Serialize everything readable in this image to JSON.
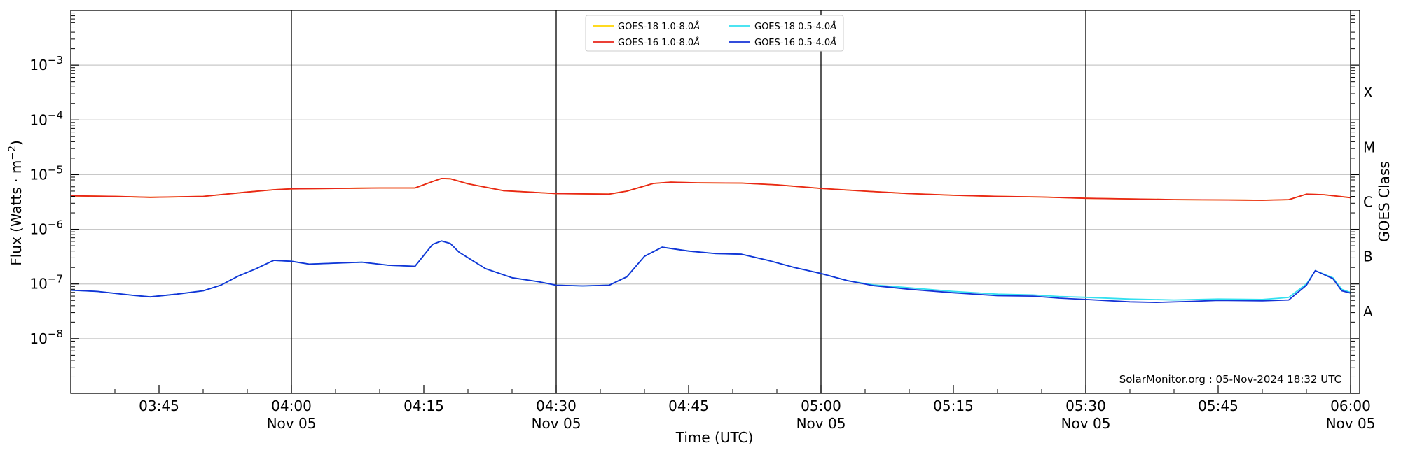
{
  "chart_data": {
    "type": "line",
    "xlabel": "Time (UTC)",
    "ylabel_main": "Flux (Watts · m",
    "ylabel_sup": "−2",
    "ylabel_end": ")",
    "right_label": "GOES Class",
    "yscale": "log",
    "xlim": [
      "03:35",
      "06:00"
    ],
    "ylim_log10": [
      -9,
      -2
    ],
    "grid": "horizontal",
    "legend_placement": "top-center",
    "watermark": "SolarMonitor.org : 05-Nov-2024 18:32 UTC",
    "x_ticks": [
      {
        "t": "03:45",
        "line1": "03:45",
        "line2": ""
      },
      {
        "t": "04:00",
        "line1": "04:00",
        "line2": "Nov 05"
      },
      {
        "t": "04:15",
        "line1": "04:15",
        "line2": ""
      },
      {
        "t": "04:30",
        "line1": "04:30",
        "line2": "Nov 05"
      },
      {
        "t": "04:45",
        "line1": "04:45",
        "line2": ""
      },
      {
        "t": "05:00",
        "line1": "05:00",
        "line2": "Nov 05"
      },
      {
        "t": "05:15",
        "line1": "05:15",
        "line2": ""
      },
      {
        "t": "05:30",
        "line1": "05:30",
        "line2": "Nov 05"
      },
      {
        "t": "05:45",
        "line1": "05:45",
        "line2": ""
      },
      {
        "t": "06:00",
        "line1": "06:00",
        "line2": "Nov 05"
      }
    ],
    "vlines": [
      "04:00",
      "04:30",
      "05:00",
      "05:30"
    ],
    "y_ticks": [
      {
        "exp": -8,
        "label": "10",
        "sup": "−8"
      },
      {
        "exp": -7,
        "label": "10",
        "sup": "−7"
      },
      {
        "exp": -6,
        "label": "10",
        "sup": "−6"
      },
      {
        "exp": -5,
        "label": "10",
        "sup": "−5"
      },
      {
        "exp": -4,
        "label": "10",
        "sup": "−4"
      },
      {
        "exp": -3,
        "label": "10",
        "sup": "−3"
      }
    ],
    "goes_classes": [
      {
        "label": "A",
        "exp": -7.5
      },
      {
        "label": "B",
        "exp": -6.5
      },
      {
        "label": "C",
        "exp": -5.5
      },
      {
        "label": "M",
        "exp": -4.5
      },
      {
        "label": "X",
        "exp": -3.5
      }
    ],
    "series": [
      {
        "name": "GOES-18 1.0-8.0Å",
        "name_main": "GOES-18 1.0-8.0",
        "color": "#ffd500",
        "points": [
          [
            "03:35",
            4.1e-06
          ],
          [
            "03:40",
            4e-06
          ],
          [
            "03:44",
            3.85e-06
          ],
          [
            "03:50",
            4e-06
          ],
          [
            "03:55",
            4.8e-06
          ],
          [
            "03:58",
            5.3e-06
          ],
          [
            "04:00",
            5.5e-06
          ],
          [
            "04:05",
            5.6e-06
          ],
          [
            "04:10",
            5.7e-06
          ],
          [
            "04:14",
            5.7e-06
          ],
          [
            "04:16",
            7.5e-06
          ],
          [
            "04:17",
            8.5e-06
          ],
          [
            "04:18",
            8.4e-06
          ],
          [
            "04:20",
            6.8e-06
          ],
          [
            "04:24",
            5.1e-06
          ],
          [
            "04:30",
            4.5e-06
          ],
          [
            "04:36",
            4.4e-06
          ],
          [
            "04:38",
            5e-06
          ],
          [
            "04:41",
            6.9e-06
          ],
          [
            "04:43",
            7.3e-06
          ],
          [
            "04:46",
            7.1e-06
          ],
          [
            "04:51",
            7e-06
          ],
          [
            "04:55",
            6.5e-06
          ],
          [
            "05:00",
            5.6e-06
          ],
          [
            "05:05",
            5e-06
          ],
          [
            "05:10",
            4.5e-06
          ],
          [
            "05:15",
            4.2e-06
          ],
          [
            "05:20",
            4e-06
          ],
          [
            "05:25",
            3.9e-06
          ],
          [
            "05:30",
            3.7e-06
          ],
          [
            "05:35",
            3.6e-06
          ],
          [
            "05:40",
            3.5e-06
          ],
          [
            "05:45",
            3.45e-06
          ],
          [
            "05:50",
            3.4e-06
          ],
          [
            "05:53",
            3.5e-06
          ],
          [
            "05:55",
            4.4e-06
          ],
          [
            "05:57",
            4.3e-06
          ],
          [
            "06:00",
            3.8e-06
          ]
        ]
      },
      {
        "name": "GOES-16 1.0-8.0Å",
        "name_main": "GOES-16 1.0-8.0",
        "color": "#e8251a",
        "points": [
          [
            "03:35",
            4.1e-06
          ],
          [
            "03:40",
            4e-06
          ],
          [
            "03:44",
            3.85e-06
          ],
          [
            "03:50",
            4e-06
          ],
          [
            "03:55",
            4.8e-06
          ],
          [
            "03:58",
            5.3e-06
          ],
          [
            "04:00",
            5.5e-06
          ],
          [
            "04:05",
            5.6e-06
          ],
          [
            "04:10",
            5.7e-06
          ],
          [
            "04:14",
            5.7e-06
          ],
          [
            "04:16",
            7.5e-06
          ],
          [
            "04:17",
            8.5e-06
          ],
          [
            "04:18",
            8.4e-06
          ],
          [
            "04:20",
            6.8e-06
          ],
          [
            "04:24",
            5.1e-06
          ],
          [
            "04:30",
            4.5e-06
          ],
          [
            "04:36",
            4.4e-06
          ],
          [
            "04:38",
            5e-06
          ],
          [
            "04:41",
            6.9e-06
          ],
          [
            "04:43",
            7.3e-06
          ],
          [
            "04:46",
            7.1e-06
          ],
          [
            "04:51",
            7e-06
          ],
          [
            "04:55",
            6.5e-06
          ],
          [
            "05:00",
            5.6e-06
          ],
          [
            "05:05",
            5e-06
          ],
          [
            "05:10",
            4.5e-06
          ],
          [
            "05:15",
            4.2e-06
          ],
          [
            "05:20",
            4e-06
          ],
          [
            "05:25",
            3.9e-06
          ],
          [
            "05:30",
            3.7e-06
          ],
          [
            "05:35",
            3.6e-06
          ],
          [
            "05:40",
            3.5e-06
          ],
          [
            "05:45",
            3.45e-06
          ],
          [
            "05:50",
            3.4e-06
          ],
          [
            "05:53",
            3.5e-06
          ],
          [
            "05:55",
            4.4e-06
          ],
          [
            "05:57",
            4.3e-06
          ],
          [
            "06:00",
            3.8e-06
          ]
        ]
      },
      {
        "name": "GOES-18 0.5-4.0Å",
        "name_main": "GOES-18 0.5-4.0",
        "color": "#33e0f0",
        "points": [
          [
            "03:35",
            7.7e-08
          ],
          [
            "03:38",
            7.3e-08
          ],
          [
            "03:42",
            6.2e-08
          ],
          [
            "03:44",
            5.8e-08
          ],
          [
            "03:47",
            6.5e-08
          ],
          [
            "03:50",
            7.5e-08
          ],
          [
            "03:52",
            9.5e-08
          ],
          [
            "03:54",
            1.4e-07
          ],
          [
            "03:56",
            1.9e-07
          ],
          [
            "03:58",
            2.7e-07
          ],
          [
            "04:00",
            2.6e-07
          ],
          [
            "04:02",
            2.3e-07
          ],
          [
            "04:05",
            2.4e-07
          ],
          [
            "04:08",
            2.5e-07
          ],
          [
            "04:11",
            2.2e-07
          ],
          [
            "04:14",
            2.1e-07
          ],
          [
            "04:16",
            5.3e-07
          ],
          [
            "04:17",
            6.1e-07
          ],
          [
            "04:18",
            5.5e-07
          ],
          [
            "04:19",
            3.8e-07
          ],
          [
            "04:22",
            1.9e-07
          ],
          [
            "04:25",
            1.3e-07
          ],
          [
            "04:28",
            1.1e-07
          ],
          [
            "04:30",
            9.5e-08
          ],
          [
            "04:33",
            9.2e-08
          ],
          [
            "04:36",
            9.5e-08
          ],
          [
            "04:38",
            1.35e-07
          ],
          [
            "04:40",
            3.2e-07
          ],
          [
            "04:42",
            4.7e-07
          ],
          [
            "04:45",
            4e-07
          ],
          [
            "04:48",
            3.6e-07
          ],
          [
            "04:51",
            3.5e-07
          ],
          [
            "04:54",
            2.7e-07
          ],
          [
            "04:57",
            2e-07
          ],
          [
            "05:00",
            1.55e-07
          ],
          [
            "05:03",
            1.15e-07
          ],
          [
            "05:06",
            9.6e-08
          ],
          [
            "05:10",
            8.5e-08
          ],
          [
            "05:15",
            7.3e-08
          ],
          [
            "05:20",
            6.5e-08
          ],
          [
            "05:24",
            6.3e-08
          ],
          [
            "05:27",
            5.9e-08
          ],
          [
            "05:30",
            5.7e-08
          ],
          [
            "05:35",
            5.3e-08
          ],
          [
            "05:40",
            5.1e-08
          ],
          [
            "05:45",
            5.3e-08
          ],
          [
            "05:50",
            5.2e-08
          ],
          [
            "05:52",
            5.5e-08
          ],
          [
            "05:53",
            5.7e-08
          ],
          [
            "05:55",
            1e-07
          ],
          [
            "05:56",
            1.75e-07
          ],
          [
            "05:58",
            1.3e-07
          ],
          [
            "05:59",
            8e-08
          ],
          [
            "06:00",
            7e-08
          ]
        ]
      },
      {
        "name": "GOES-16 0.5-4.0Å",
        "name_main": "GOES-16 0.5-4.0",
        "color": "#1432d6",
        "points": [
          [
            "03:35",
            7.7e-08
          ],
          [
            "03:38",
            7.3e-08
          ],
          [
            "03:42",
            6.2e-08
          ],
          [
            "03:44",
            5.8e-08
          ],
          [
            "03:47",
            6.5e-08
          ],
          [
            "03:50",
            7.5e-08
          ],
          [
            "03:52",
            9.5e-08
          ],
          [
            "03:54",
            1.4e-07
          ],
          [
            "03:56",
            1.9e-07
          ],
          [
            "03:58",
            2.7e-07
          ],
          [
            "04:00",
            2.6e-07
          ],
          [
            "04:02",
            2.3e-07
          ],
          [
            "04:05",
            2.4e-07
          ],
          [
            "04:08",
            2.5e-07
          ],
          [
            "04:11",
            2.2e-07
          ],
          [
            "04:14",
            2.1e-07
          ],
          [
            "04:16",
            5.3e-07
          ],
          [
            "04:17",
            6.1e-07
          ],
          [
            "04:18",
            5.5e-07
          ],
          [
            "04:19",
            3.8e-07
          ],
          [
            "04:22",
            1.9e-07
          ],
          [
            "04:25",
            1.3e-07
          ],
          [
            "04:28",
            1.1e-07
          ],
          [
            "04:30",
            9.5e-08
          ],
          [
            "04:33",
            9.2e-08
          ],
          [
            "04:36",
            9.5e-08
          ],
          [
            "04:38",
            1.35e-07
          ],
          [
            "04:40",
            3.2e-07
          ],
          [
            "04:42",
            4.7e-07
          ],
          [
            "04:45",
            4e-07
          ],
          [
            "04:48",
            3.6e-07
          ],
          [
            "04:51",
            3.5e-07
          ],
          [
            "04:54",
            2.7e-07
          ],
          [
            "04:57",
            2e-07
          ],
          [
            "05:00",
            1.55e-07
          ],
          [
            "05:03",
            1.15e-07
          ],
          [
            "05:06",
            9.3e-08
          ],
          [
            "05:10",
            8e-08
          ],
          [
            "05:15",
            6.9e-08
          ],
          [
            "05:20",
            6.1e-08
          ],
          [
            "05:24",
            6e-08
          ],
          [
            "05:27",
            5.5e-08
          ],
          [
            "05:30",
            5.2e-08
          ],
          [
            "05:35",
            4.7e-08
          ],
          [
            "05:38",
            4.6e-08
          ],
          [
            "05:42",
            4.8e-08
          ],
          [
            "05:45",
            5e-08
          ],
          [
            "05:50",
            4.9e-08
          ],
          [
            "05:53",
            5.1e-08
          ],
          [
            "05:55",
            9.5e-08
          ],
          [
            "05:56",
            1.75e-07
          ],
          [
            "05:58",
            1.25e-07
          ],
          [
            "05:59",
            7.5e-08
          ],
          [
            "06:00",
            6.8e-08
          ]
        ]
      }
    ]
  }
}
